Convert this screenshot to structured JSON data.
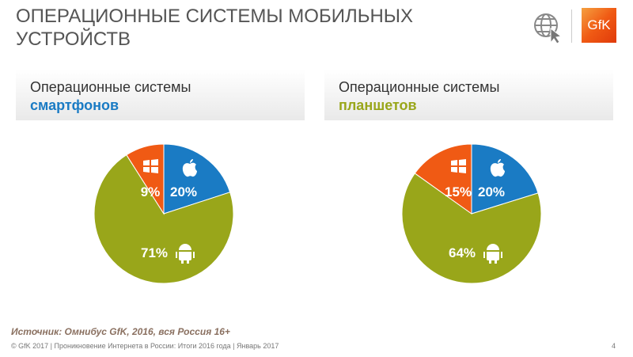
{
  "header": {
    "title": "ОПЕРАЦИОННЫЕ СИСТЕМЫ МОБИЛЬНЫХ УСТРОЙСТВ",
    "logo": "GfK"
  },
  "colors": {
    "ios": "#1a7bc4",
    "android": "#99a61a",
    "windows": "#f05a14"
  },
  "chart_data": [
    {
      "type": "pie",
      "title_line1": "Операционные системы",
      "title_line2": "смартфонов",
      "title_color": "#1a7bc4",
      "slices": [
        {
          "name": "iOS",
          "value": 20,
          "label": "20%",
          "icon": "apple-icon"
        },
        {
          "name": "Android",
          "value": 71,
          "label": "71%",
          "icon": "android-icon"
        },
        {
          "name": "Windows",
          "value": 9,
          "label": "9%",
          "icon": "windows-icon"
        }
      ]
    },
    {
      "type": "pie",
      "title_line1": "Операционные системы",
      "title_line2": "планшетов",
      "title_color": "#99a61a",
      "slices": [
        {
          "name": "iOS",
          "value": 20,
          "label": "20%",
          "icon": "apple-icon"
        },
        {
          "name": "Android",
          "value": 64,
          "label": "64%",
          "icon": "android-icon"
        },
        {
          "name": "Windows",
          "value": 15,
          "label": "15%",
          "icon": "windows-icon"
        }
      ]
    }
  ],
  "footer": {
    "source": "Источник: Омнибус GfK, 2016, вся Россия 16+",
    "copyright": "© GfK 2017 | Проникновение Интернета в России: Итоги 2016 года | Январь 2017",
    "page": "4"
  }
}
